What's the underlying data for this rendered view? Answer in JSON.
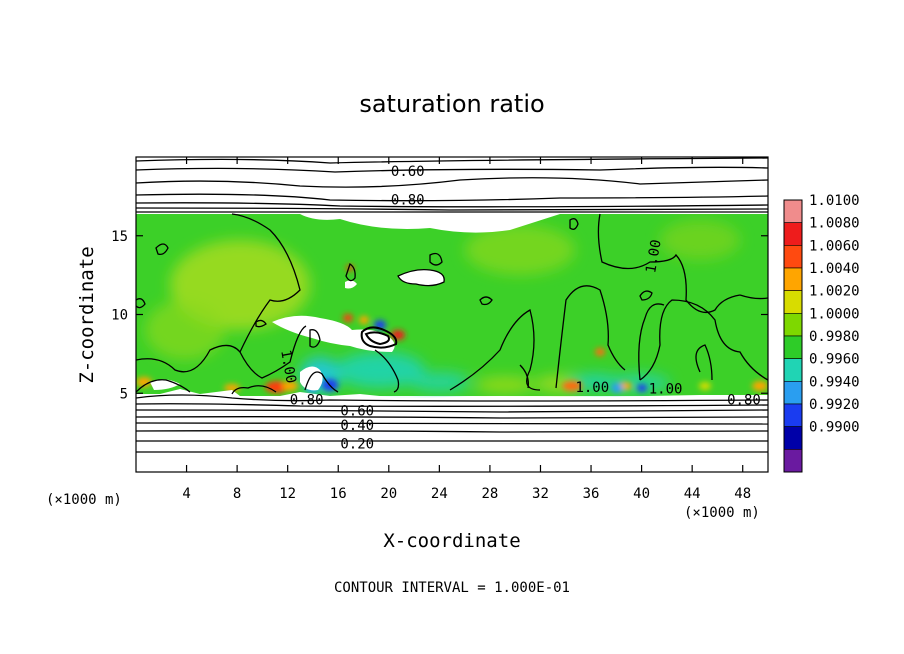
{
  "chart_data": {
    "type": "heatmap",
    "title": "saturation ratio",
    "xlabel": "X-coordinate",
    "ylabel": "Z-coordinate",
    "x_unit": "(×1000 m)",
    "z_unit": "(×1000 m)",
    "xlim": [
      0,
      50
    ],
    "ylim": [
      0,
      20
    ],
    "x_ticks": [
      4,
      8,
      12,
      16,
      20,
      24,
      28,
      32,
      36,
      40,
      44,
      48
    ],
    "y_ticks": [
      5,
      10,
      15
    ],
    "colorbar": {
      "min": 0.99,
      "max": 1.01,
      "levels": [
        {
          "value": "1.0100",
          "color": "#f08c8c"
        },
        {
          "value": "1.0080",
          "color": "#ee1c1c"
        },
        {
          "value": "1.0060",
          "color": "#ff4a10"
        },
        {
          "value": "1.0040",
          "color": "#ffa500"
        },
        {
          "value": "1.0020",
          "color": "#d8dc00"
        },
        {
          "value": "1.0000",
          "color": "#7ed800"
        },
        {
          "value": "0.9980",
          "color": "#2ecc28"
        },
        {
          "value": "0.9960",
          "color": "#20d4b4"
        },
        {
          "value": "0.9940",
          "color": "#2a9ef0"
        },
        {
          "value": "0.9920",
          "color": "#1a3cf0"
        },
        {
          "value": "0.9900",
          "color": "#0000a8"
        },
        {
          "value": "",
          "color": "#6a1aa0"
        }
      ]
    },
    "contour_labels": [
      {
        "text": "0.60",
        "x": 21.5,
        "y": 19.1
      },
      {
        "text": "0.80",
        "x": 21.5,
        "y": 17.3
      },
      {
        "text": "1.00",
        "x": 40.9,
        "y": 13.7,
        "rotate": -80
      },
      {
        "text": "1.00",
        "x": 12.1,
        "y": 6.7,
        "rotate": 80
      },
      {
        "text": "1.00",
        "x": 36.1,
        "y": 5.4
      },
      {
        "text": "1.00",
        "x": 41.9,
        "y": 5.3
      },
      {
        "text": "0.80",
        "x": 13.5,
        "y": 4.6
      },
      {
        "text": "0.80",
        "x": 48.1,
        "y": 4.6
      },
      {
        "text": "0.60",
        "x": 17.5,
        "y": 3.9
      },
      {
        "text": "0.40",
        "x": 17.5,
        "y": 3.0
      },
      {
        "text": "0.20",
        "x": 17.5,
        "y": 1.8
      }
    ],
    "note": "CONTOUR INTERVAL = 1.000E-01"
  }
}
